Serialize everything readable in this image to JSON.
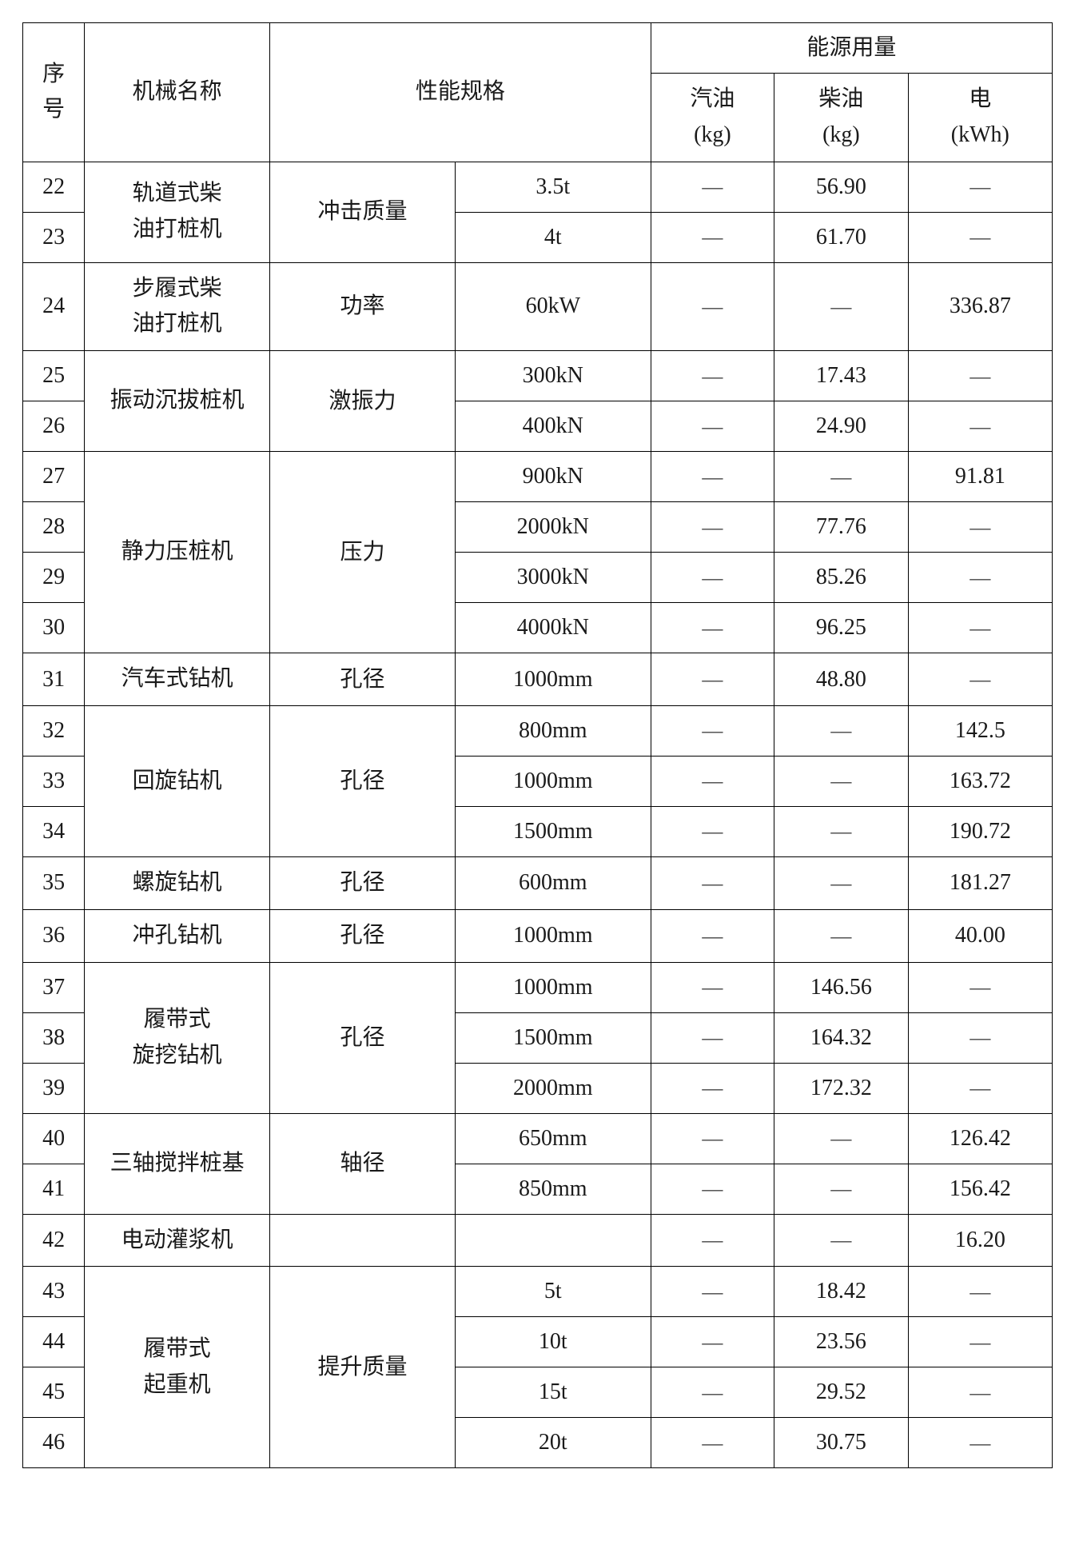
{
  "header": {
    "seq": "序\n号",
    "name": "机械名称",
    "spec": "性能规格",
    "energy": "能源用量",
    "gas": "汽油\n(kg)",
    "diesel": "柴油\n(kg)",
    "elec": "电\n(kWh)"
  },
  "dash": "—",
  "rows": [
    {
      "seq": "22",
      "name": "轨道式柴\n油打桩机",
      "name_span": 2,
      "spec1": "冲击质量",
      "spec1_span": 2,
      "spec2": "3.5t",
      "gas": "—",
      "diesel": "56.90",
      "elec": "—"
    },
    {
      "seq": "23",
      "spec2": "4t",
      "gas": "—",
      "diesel": "61.70",
      "elec": "—"
    },
    {
      "seq": "24",
      "name": "步履式柴\n油打桩机",
      "name_span": 1,
      "spec1": "功率",
      "spec1_span": 1,
      "spec2": "60kW",
      "gas": "—",
      "diesel": "—",
      "elec": "336.87"
    },
    {
      "seq": "25",
      "name": "振动沉拔桩机",
      "name_span": 2,
      "spec1": "激振力",
      "spec1_span": 2,
      "spec2": "300kN",
      "gas": "—",
      "diesel": "17.43",
      "elec": "—"
    },
    {
      "seq": "26",
      "spec2": "400kN",
      "gas": "—",
      "diesel": "24.90",
      "elec": "—"
    },
    {
      "seq": "27",
      "name": "静力压桩机",
      "name_span": 4,
      "spec1": "压力",
      "spec1_span": 4,
      "spec2": "900kN",
      "gas": "—",
      "diesel": "—",
      "elec": "91.81"
    },
    {
      "seq": "28",
      "spec2": "2000kN",
      "gas": "—",
      "diesel": "77.76",
      "elec": "—"
    },
    {
      "seq": "29",
      "spec2": "3000kN",
      "gas": "—",
      "diesel": "85.26",
      "elec": "—"
    },
    {
      "seq": "30",
      "spec2": "4000kN",
      "gas": "—",
      "diesel": "96.25",
      "elec": "—"
    },
    {
      "seq": "31",
      "name": "汽车式钻机",
      "name_span": 1,
      "spec1": "孔径",
      "spec1_span": 1,
      "spec2": "1000mm",
      "gas": "—",
      "diesel": "48.80",
      "elec": "—"
    },
    {
      "seq": "32",
      "name": "回旋钻机",
      "name_span": 3,
      "spec1": "孔径",
      "spec1_span": 3,
      "spec2": "800mm",
      "gas": "—",
      "diesel": "—",
      "elec": "142.5"
    },
    {
      "seq": "33",
      "spec2": "1000mm",
      "gas": "—",
      "diesel": "—",
      "elec": "163.72"
    },
    {
      "seq": "34",
      "spec2": "1500mm",
      "gas": "—",
      "diesel": "—",
      "elec": "190.72"
    },
    {
      "seq": "35",
      "name": "螺旋钻机",
      "name_span": 1,
      "spec1": "孔径",
      "spec1_span": 1,
      "spec2": "600mm",
      "gas": "—",
      "diesel": "—",
      "elec": "181.27"
    },
    {
      "seq": "36",
      "name": "冲孔钻机",
      "name_span": 1,
      "spec1": "孔径",
      "spec1_span": 1,
      "spec2": "1000mm",
      "gas": "—",
      "diesel": "—",
      "elec": "40.00"
    },
    {
      "seq": "37",
      "name": "履带式\n旋挖钻机",
      "name_span": 3,
      "spec1": "孔径",
      "spec1_span": 3,
      "spec2": "1000mm",
      "gas": "—",
      "diesel": "146.56",
      "elec": "—"
    },
    {
      "seq": "38",
      "spec2": "1500mm",
      "gas": "—",
      "diesel": "164.32",
      "elec": "—"
    },
    {
      "seq": "39",
      "spec2": "2000mm",
      "gas": "—",
      "diesel": "172.32",
      "elec": "—"
    },
    {
      "seq": "40",
      "name": "三轴搅拌桩基",
      "name_span": 2,
      "spec1": "轴径",
      "spec1_span": 2,
      "spec2": "650mm",
      "gas": "—",
      "diesel": "—",
      "elec": "126.42"
    },
    {
      "seq": "41",
      "spec2": "850mm",
      "gas": "—",
      "diesel": "—",
      "elec": "156.42"
    },
    {
      "seq": "42",
      "name": "电动灌浆机",
      "name_span": 1,
      "spec1": "",
      "spec1_span": 1,
      "spec2": "",
      "gas": "—",
      "diesel": "—",
      "elec": "16.20"
    },
    {
      "seq": "43",
      "name": "履带式\n起重机",
      "name_span": 4,
      "spec1": "提升质量",
      "spec1_span": 4,
      "spec2": "5t",
      "gas": "—",
      "diesel": "18.42",
      "elec": "—"
    },
    {
      "seq": "44",
      "spec2": "10t",
      "gas": "—",
      "diesel": "23.56",
      "elec": "—"
    },
    {
      "seq": "45",
      "spec2": "15t",
      "gas": "—",
      "diesel": "29.52",
      "elec": "—"
    },
    {
      "seq": "46",
      "spec2": "20t",
      "gas": "—",
      "diesel": "30.75",
      "elec": "—"
    }
  ]
}
